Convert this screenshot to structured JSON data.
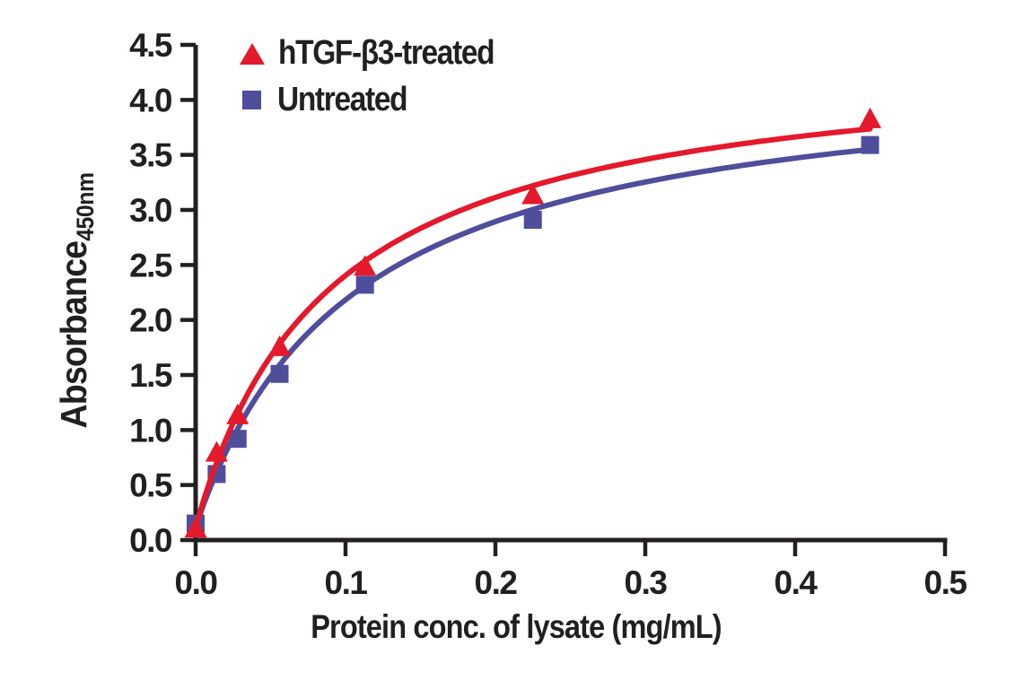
{
  "figure": {
    "background_color": "#ffffff",
    "ink_color": "#231f20"
  },
  "axes": {
    "y_label_main": "Absorbance",
    "y_label_sub": "450nm",
    "x_label": "Protein conc. of lysate (mg/mL)"
  },
  "chart_data": {
    "type": "scatter",
    "title": "",
    "xlabel": "Protein conc. of lysate (mg/mL)",
    "ylabel": "Absorbance 450nm",
    "xlim": [
      0.0,
      0.5
    ],
    "ylim": [
      0.0,
      4.5
    ],
    "xticks": [
      "0.0",
      "0.1",
      "0.2",
      "0.3",
      "0.4",
      "0.5"
    ],
    "yticks": [
      "0.0",
      "0.5",
      "1.0",
      "1.5",
      "2.0",
      "2.5",
      "3.0",
      "3.5",
      "4.0",
      "4.5"
    ],
    "grid": false,
    "legend_position": "top-left-inside",
    "x": [
      0.0,
      0.014,
      0.028,
      0.056,
      0.113,
      0.225,
      0.45
    ],
    "series": [
      {
        "id": "htgf-b3-treated",
        "name": "hTGF-β3-treated",
        "marker": "triangle",
        "color": "#e4192b",
        "values": [
          0.1,
          0.79,
          1.13,
          1.75,
          2.48,
          3.13,
          3.82
        ],
        "trend_fit": {
          "type": "michaelis-menten",
          "y0": 0.12,
          "vmax": 4.34,
          "km": 0.09,
          "x_end": 0.45
        }
      },
      {
        "id": "untreated",
        "name": "Untreated",
        "marker": "square",
        "color": "#4f4e9c",
        "values": [
          0.15,
          0.6,
          0.92,
          1.51,
          2.32,
          2.91,
          3.59
        ],
        "trend_fit": {
          "type": "michaelis-menten",
          "y0": 0.12,
          "vmax": 4.23,
          "km": 0.105,
          "x_end": 0.45
        }
      }
    ]
  }
}
